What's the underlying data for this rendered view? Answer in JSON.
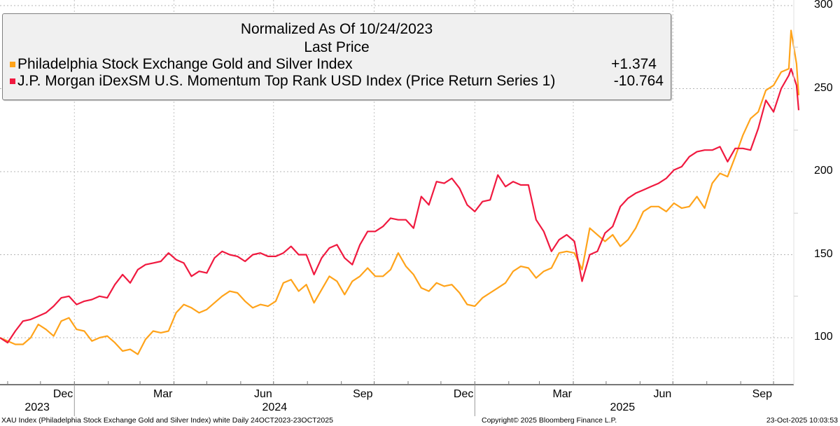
{
  "chart_data": {
    "type": "line",
    "title": "Normalized As Of 10/24/2023",
    "subtitle": "Last Price",
    "x": [
      "2023-10-24",
      "2023-10-31",
      "2023-11-07",
      "2023-11-14",
      "2023-11-21",
      "2023-11-28",
      "2023-12-05",
      "2023-12-12",
      "2023-12-19",
      "2023-12-26",
      "2024-01-02",
      "2024-01-09",
      "2024-01-16",
      "2024-01-23",
      "2024-01-30",
      "2024-02-06",
      "2024-02-13",
      "2024-02-20",
      "2024-02-27",
      "2024-03-05",
      "2024-03-12",
      "2024-03-19",
      "2024-03-26",
      "2024-04-02",
      "2024-04-09",
      "2024-04-16",
      "2024-04-23",
      "2024-04-30",
      "2024-05-07",
      "2024-05-14",
      "2024-05-21",
      "2024-05-28",
      "2024-06-04",
      "2024-06-11",
      "2024-06-18",
      "2024-06-25",
      "2024-07-02",
      "2024-07-09",
      "2024-07-16",
      "2024-07-23",
      "2024-07-30",
      "2024-08-06",
      "2024-08-13",
      "2024-08-20",
      "2024-08-27",
      "2024-09-03",
      "2024-09-10",
      "2024-09-17",
      "2024-09-24",
      "2024-10-01",
      "2024-10-08",
      "2024-10-15",
      "2024-10-22",
      "2024-10-29",
      "2024-11-05",
      "2024-11-12",
      "2024-11-19",
      "2024-11-26",
      "2024-12-03",
      "2024-12-10",
      "2024-12-17",
      "2024-12-24",
      "2024-12-31",
      "2025-01-07",
      "2025-01-14",
      "2025-01-21",
      "2025-01-28",
      "2025-02-04",
      "2025-02-11",
      "2025-02-18",
      "2025-02-25",
      "2025-03-04",
      "2025-03-11",
      "2025-03-18",
      "2025-03-25",
      "2025-04-01",
      "2025-04-08",
      "2025-04-15",
      "2025-04-22",
      "2025-04-29",
      "2025-05-06",
      "2025-05-13",
      "2025-05-20",
      "2025-05-27",
      "2025-06-03",
      "2025-06-10",
      "2025-06-17",
      "2025-06-24",
      "2025-07-01",
      "2025-07-08",
      "2025-07-15",
      "2025-07-22",
      "2025-07-29",
      "2025-08-05",
      "2025-08-12",
      "2025-08-19",
      "2025-08-26",
      "2025-09-02",
      "2025-09-09",
      "2025-09-16",
      "2025-09-23",
      "2025-09-30",
      "2025-10-07",
      "2025-10-14",
      "2025-10-16",
      "2025-10-21",
      "2025-10-23"
    ],
    "series": [
      {
        "name": "Philadelphia Stock Exchange Gold and Silver Index",
        "last_value": "+1.374",
        "color": "#ffa31a",
        "values": [
          100,
          98,
          96,
          96,
          100,
          108,
          105,
          101,
          110,
          112,
          105,
          104,
          98,
          100,
          101,
          97,
          92,
          93,
          90,
          99,
          104,
          103,
          104,
          115,
          120,
          118,
          115,
          117,
          121,
          125,
          128,
          127,
          122,
          118,
          120,
          119,
          122,
          133,
          135,
          128,
          132,
          121,
          129,
          137,
          134,
          126,
          134,
          137,
          142,
          137,
          137,
          141,
          151,
          143,
          138,
          130,
          128,
          133,
          131,
          132,
          127,
          120,
          119,
          124,
          127,
          130,
          133,
          140,
          143,
          142,
          136,
          140,
          142,
          151,
          152,
          151,
          141,
          166,
          162,
          158,
          162,
          155,
          159,
          166,
          176,
          179,
          179,
          176,
          181,
          178,
          179,
          185,
          178,
          193,
          199,
          197,
          209,
          222,
          232,
          236,
          249,
          252,
          260,
          262,
          285,
          265,
          246
        ]
      },
      {
        "name": "J.P. Morgan iDexSM U.S. Momentum Top Rank USD Index (Price Return Series 1)",
        "last_value": "-10.764",
        "color": "#f0193f",
        "values": [
          100,
          97,
          104,
          110,
          111,
          113,
          115,
          119,
          124,
          125,
          120,
          122,
          123,
          125,
          124,
          132,
          138,
          133,
          141,
          144,
          145,
          146,
          151,
          147,
          145,
          137,
          140,
          139,
          148,
          152,
          150,
          149,
          146,
          150,
          151,
          149,
          149,
          151,
          155,
          150,
          150,
          138,
          148,
          154,
          156,
          148,
          144,
          156,
          164,
          164,
          167,
          172,
          171,
          171,
          166,
          185,
          180,
          194,
          193,
          196,
          190,
          180,
          176,
          182,
          183,
          198,
          191,
          194,
          192,
          192,
          171,
          164,
          152,
          159,
          162,
          158,
          134,
          150,
          152,
          163,
          167,
          179,
          184,
          187,
          189,
          191,
          193,
          196,
          201,
          203,
          209,
          212,
          213,
          213,
          215,
          206,
          214,
          214,
          213,
          226,
          243,
          236,
          250,
          258,
          262,
          252,
          237
        ]
      }
    ],
    "ylim": [
      78,
      304
    ],
    "yticks": [
      "100",
      "150",
      "200",
      "250",
      "300"
    ],
    "ytick_values": [
      100,
      150,
      200,
      250,
      300
    ],
    "xticks": [
      {
        "label": "Dec",
        "date": "2023-12-31"
      },
      {
        "label": "Mar",
        "date": "2024-03-31"
      },
      {
        "label": "Jun",
        "date": "2024-06-30"
      },
      {
        "label": "Sep",
        "date": "2024-09-30"
      },
      {
        "label": "Dec",
        "date": "2024-12-31"
      },
      {
        "label": "Mar",
        "date": "2025-03-31"
      },
      {
        "label": "Jun",
        "date": "2025-06-30"
      },
      {
        "label": "Sep",
        "date": "2025-09-30"
      }
    ],
    "years": [
      {
        "label": "2023",
        "date": "2023-11-27"
      },
      {
        "label": "2024",
        "date": "2024-07-01"
      },
      {
        "label": "2025",
        "date": "2025-05-15"
      }
    ],
    "year_breaks": [
      "2023-12-31",
      "2024-12-31"
    ],
    "grid": true,
    "legend_position": "top-left",
    "y_axis_side": "right"
  },
  "footer": {
    "left": "XAU Index (Philadelphia Stock Exchange Gold and Silver Index) white Daily 24OCT2023-23OCT2025",
    "center": "Copyright© 2025 Bloomberg Finance L.P.",
    "right": "23-Oct-2025 10:03:53"
  }
}
